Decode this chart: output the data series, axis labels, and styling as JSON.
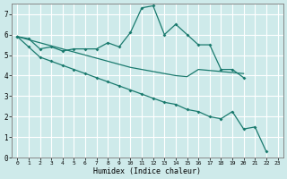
{
  "xlabel": "Humidex (Indice chaleur)",
  "ylabel": "",
  "bg_color": "#ceeaea",
  "grid_color": "#ffffff",
  "line_color": "#1a7a6e",
  "xlim": [
    -0.5,
    23.5
  ],
  "ylim": [
    0,
    7.5
  ],
  "xticks": [
    0,
    1,
    2,
    3,
    4,
    5,
    6,
    7,
    8,
    9,
    10,
    11,
    12,
    13,
    14,
    15,
    16,
    17,
    18,
    19,
    20,
    21,
    22,
    23
  ],
  "yticks": [
    0,
    1,
    2,
    3,
    4,
    5,
    6,
    7
  ],
  "line1_x": [
    0,
    1,
    2,
    3,
    4,
    5,
    6,
    7,
    8,
    9,
    10,
    11,
    12,
    13,
    14,
    15,
    16,
    17,
    18,
    19,
    20
  ],
  "line1_y": [
    5.9,
    5.8,
    5.3,
    5.4,
    5.2,
    5.3,
    5.3,
    5.3,
    5.6,
    5.4,
    6.1,
    7.3,
    7.4,
    6.0,
    6.5,
    6.0,
    5.5,
    5.5,
    4.3,
    4.3,
    3.9
  ],
  "line2_x": [
    0,
    1,
    2,
    3,
    4,
    5,
    6,
    7,
    8,
    9,
    10,
    11,
    12,
    13,
    14,
    15,
    16,
    17,
    18,
    19,
    20,
    21,
    22,
    23
  ],
  "line2_y": [
    5.9,
    5.75,
    5.6,
    5.45,
    5.3,
    5.15,
    5.0,
    4.85,
    4.7,
    4.55,
    4.4,
    4.3,
    4.2,
    4.1,
    4.0,
    3.95,
    4.3,
    4.25,
    4.2,
    4.15,
    4.1,
    null,
    null,
    null
  ],
  "line3_x": [
    0,
    1,
    2,
    3,
    4,
    5,
    6,
    7,
    8,
    9,
    10,
    11,
    12,
    13,
    14,
    15,
    16,
    17,
    18,
    19,
    20,
    21,
    22,
    23
  ],
  "line3_y": [
    5.9,
    5.4,
    4.9,
    4.7,
    4.5,
    4.3,
    4.1,
    3.9,
    3.7,
    3.5,
    3.3,
    3.1,
    2.9,
    2.7,
    2.6,
    2.35,
    2.25,
    2.0,
    1.9,
    2.25,
    1.4,
    1.5,
    0.3,
    null
  ]
}
